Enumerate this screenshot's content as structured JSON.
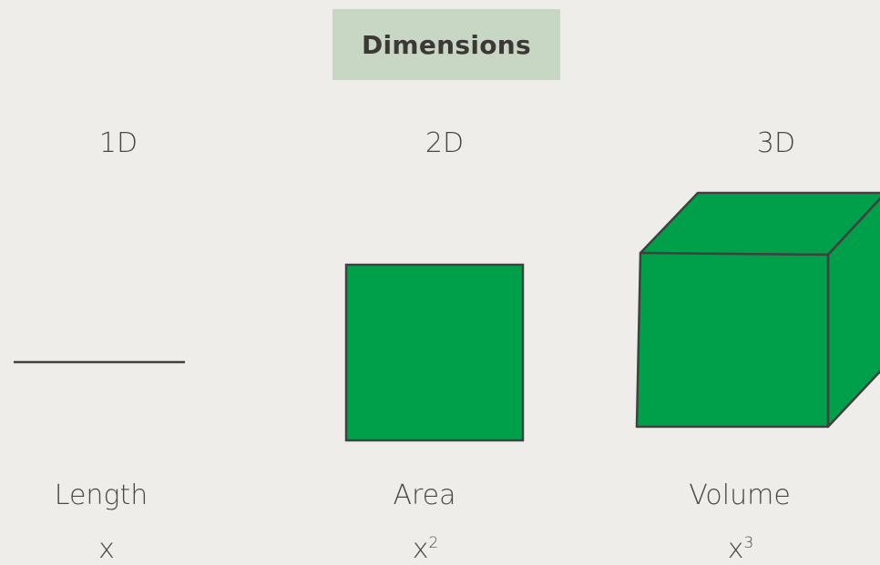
{
  "title": "Dimensions",
  "colors": {
    "background": "#efedea",
    "title_box": "#c7d7c4",
    "shape_fill": "#00a04a",
    "shape_stroke": "#404040",
    "text": "#4b4744"
  },
  "columns": [
    {
      "dimension": "1D",
      "name": "Length",
      "base": "x",
      "exponent": "",
      "shape": "line"
    },
    {
      "dimension": "2D",
      "name": "Area",
      "base": "x",
      "exponent": "2",
      "shape": "square"
    },
    {
      "dimension": "3D",
      "name": "Volume",
      "base": "x",
      "exponent": "3",
      "shape": "cube"
    }
  ]
}
